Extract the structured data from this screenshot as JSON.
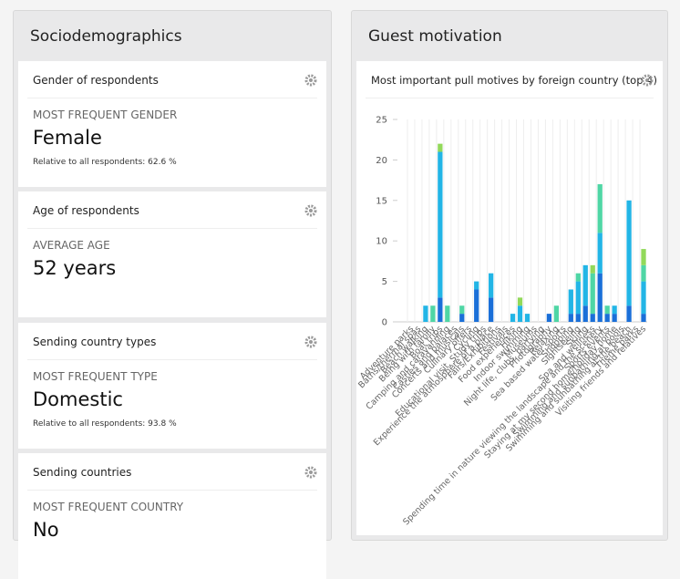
{
  "left_panel": {
    "title": "Sociodemographics",
    "cards": [
      {
        "title": "Gender of respondents",
        "label": "MOST FREQUENT GENDER",
        "value": "Female",
        "note": "Relative to all respondents:",
        "note_value": "62.6 %"
      },
      {
        "title": "Age of respondents",
        "label": "AVERAGE AGE",
        "value": "52 years"
      },
      {
        "title": "Sending country types",
        "label": "MOST FREQUENT TYPE",
        "value": "Domestic",
        "note": "Relative to all respondents:",
        "note_value": "93.8 %"
      },
      {
        "title": "Sending countries",
        "label": "MOST FREQUENT COUNTRY",
        "value": "No"
      }
    ]
  },
  "right_panel": {
    "title": "Guest motivation",
    "card_title": "Most important pull motives by foreign country (top 4)"
  },
  "chart_data": {
    "type": "stacked_bar",
    "categories": [
      "Adventure parks",
      "Baths/thermal spas",
      "Beach walking",
      "Being with family",
      "Boat trips",
      "Camping and caravanning",
      "Castles and palaces",
      "Concerts and musicals",
      "Culinary offers",
      "Cycling",
      "Educational visit, Study trips",
      "Experience the atmosphere of a place",
      "Fairs/Exhibitions",
      "Festivals",
      "Food experiences",
      "Hiking",
      "Indoor swimming",
      "Museums",
      "Night life, clubs, partying",
      "Photography",
      "Relaxing",
      "Sea based water sports",
      "Shopping",
      "Sightseeing",
      "Skiing",
      "Spa and wellness",
      "Spending time in nature viewing the landscape and the scenery",
      "Sports events",
      "Staying at my second home/holiday home",
      "Swimming and sunbathing at pools",
      "Swimming and sunbathing at the beach",
      "Theme parks",
      "Visiting friends and relatives"
    ],
    "series": [
      {
        "color": "#1a6fd8",
        "values": [
          0,
          0,
          0,
          0,
          3,
          0,
          0,
          1,
          0,
          4,
          0,
          3,
          0,
          0,
          0,
          0,
          0,
          0,
          0,
          1,
          0,
          0,
          1,
          1,
          2,
          1,
          6,
          1,
          1,
          0,
          2,
          0,
          1
        ]
      },
      {
        "color": "#22b5e6",
        "values": [
          0,
          0,
          2,
          0,
          18,
          0,
          0,
          0,
          0,
          1,
          0,
          3,
          0,
          0,
          1,
          2,
          1,
          0,
          0,
          0,
          0,
          0,
          3,
          4,
          5,
          0,
          5,
          0,
          1,
          0,
          13,
          0,
          4
        ]
      },
      {
        "color": "#4fd6a5",
        "values": [
          0,
          0,
          0,
          2,
          0,
          2,
          0,
          1,
          0,
          0,
          0,
          0,
          0,
          0,
          0,
          0,
          0,
          0,
          0,
          0,
          2,
          0,
          0,
          1,
          0,
          5,
          6,
          1,
          0,
          0,
          0,
          0,
          2
        ]
      },
      {
        "color": "#92d95a",
        "values": [
          0,
          0,
          0,
          0,
          1,
          0,
          0,
          0,
          0,
          0,
          0,
          0,
          0,
          0,
          0,
          1,
          0,
          0,
          0,
          0,
          0,
          0,
          0,
          0,
          0,
          1,
          0,
          0,
          0,
          0,
          0,
          0,
          2
        ]
      }
    ],
    "ylim": [
      0,
      25
    ],
    "yticks": [
      0,
      5,
      10,
      15,
      20,
      25
    ]
  }
}
